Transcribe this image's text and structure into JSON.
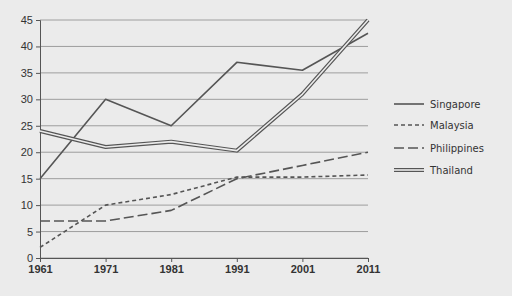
{
  "chart_data": {
    "type": "line",
    "x": [
      1961,
      1971,
      1981,
      1991,
      2001,
      2011
    ],
    "xlim": [
      1961,
      2011
    ],
    "xticks": [
      1961,
      1971,
      1981,
      1991,
      2001,
      2011
    ],
    "ylim": [
      0,
      45
    ],
    "yticks": [
      0,
      5,
      10,
      15,
      20,
      25,
      30,
      35,
      40,
      45
    ],
    "grid": true,
    "legend": "right",
    "series": [
      {
        "name": "Singapore",
        "color": "#555555",
        "line_style": "solid",
        "values": [
          15,
          30,
          25,
          37,
          35.5,
          42.5
        ]
      },
      {
        "name": "Malaysia",
        "color": "#555555",
        "line_style": "dashed",
        "values": [
          2,
          10,
          12,
          15.3,
          15.3,
          15.7
        ]
      },
      {
        "name": "Philippines",
        "color": "#555555",
        "line_style": "long_dashed",
        "values": [
          7,
          7,
          9,
          15,
          17.5,
          20
        ]
      },
      {
        "name": "Thailand",
        "color": "#555555",
        "line_style": "double",
        "values": [
          24,
          21,
          22,
          20.3,
          31,
          45
        ]
      }
    ]
  }
}
